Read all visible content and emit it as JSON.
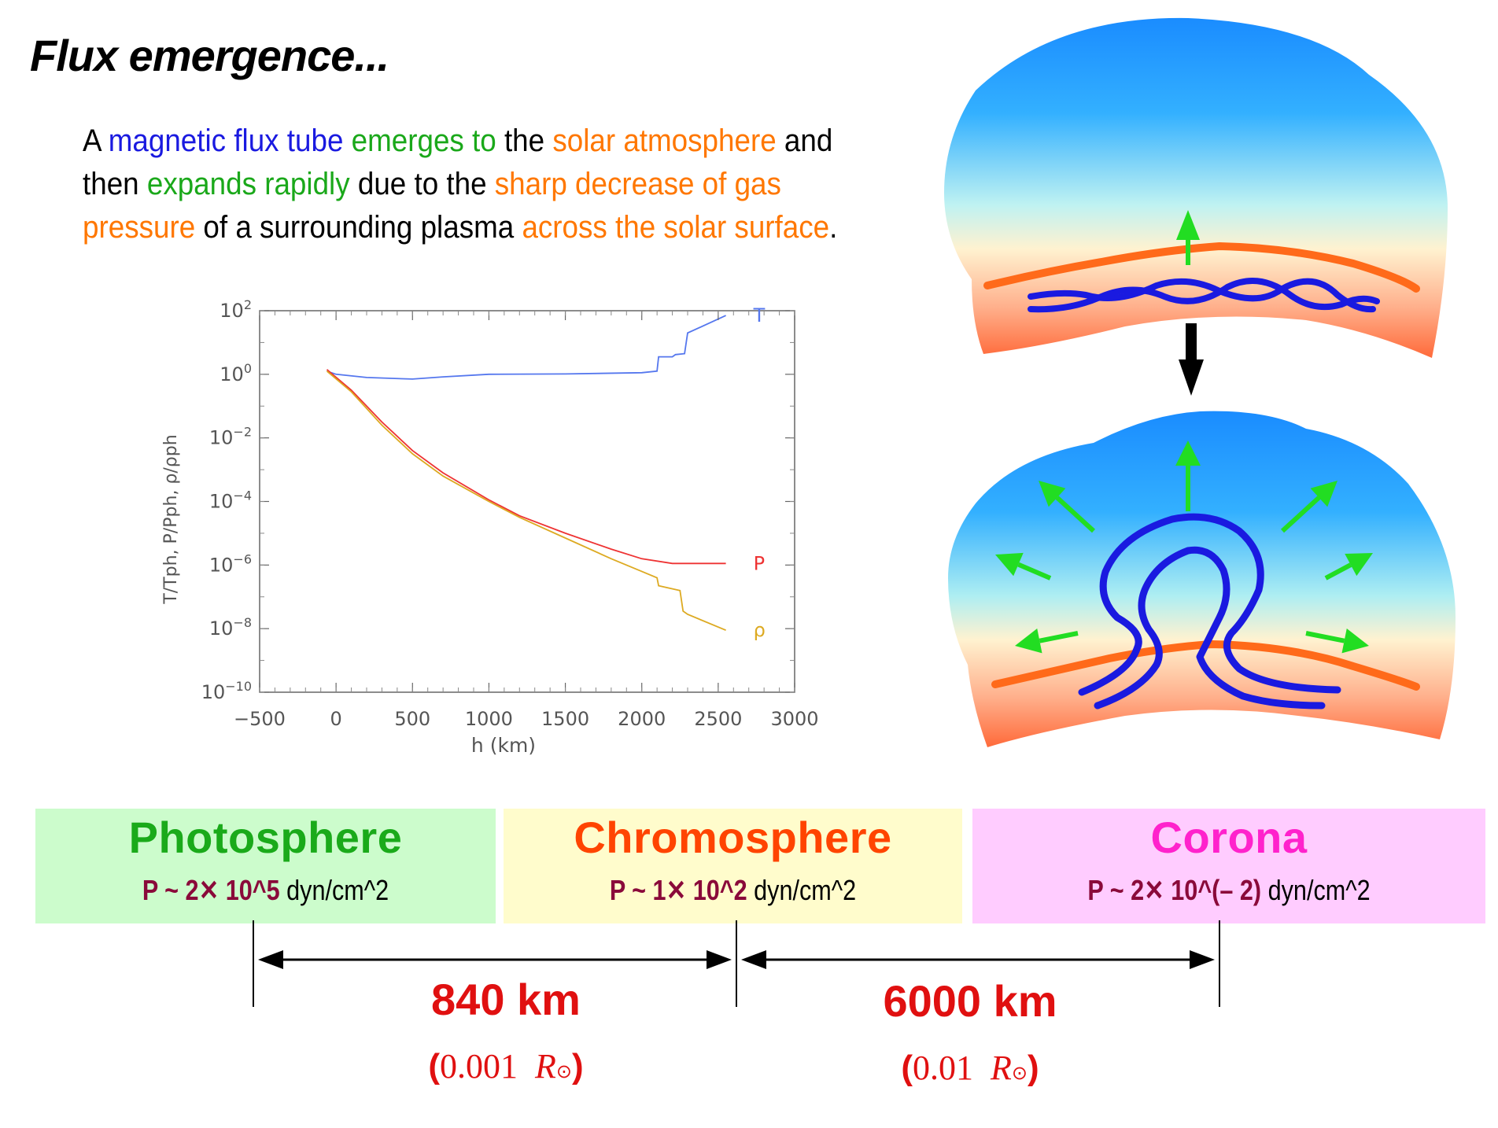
{
  "title": "Flux emergence...",
  "intro": [
    {
      "text": "A ",
      "color": "black"
    },
    {
      "text": "magnetic flux tube",
      "color": "blue"
    },
    {
      "text": " emerges to",
      "color": "green"
    },
    {
      "text": " the ",
      "color": "black"
    },
    {
      "text": "solar atmosphere",
      "color": "orange"
    },
    {
      "text": " and",
      "color": "black"
    },
    {
      "text": "\n",
      "color": "black"
    },
    {
      "text": "then ",
      "color": "black"
    },
    {
      "text": "expands rapidly",
      "color": "green"
    },
    {
      "text": " due to the ",
      "color": "black"
    },
    {
      "text": "sharp decrease of gas",
      "color": "orange"
    },
    {
      "text": "\n",
      "color": "black"
    },
    {
      "text": "pressure",
      "color": "orange"
    },
    {
      "text": " of a surrounding plasma ",
      "color": "black"
    },
    {
      "text": "across the solar surface",
      "color": "orange"
    },
    {
      "text": ".",
      "color": "black"
    }
  ],
  "chart_data": {
    "type": "line",
    "xlabel": "h (km)",
    "ylabel": "T/Tph, P/Pph, ρ/ρph",
    "xlim": [
      -500,
      3000
    ],
    "ylim": [
      -10,
      2
    ],
    "yscale": "log",
    "x_ticks": [
      "−500",
      "0",
      "500",
      "1000",
      "1500",
      "2000",
      "2500",
      "3000"
    ],
    "y_ticks": [
      {
        "base": "10",
        "exp": "2"
      },
      {
        "base": "10",
        "exp": "0"
      },
      {
        "base": "10",
        "exp": "−2"
      },
      {
        "base": "10",
        "exp": "−4"
      },
      {
        "base": "10",
        "exp": "−6"
      },
      {
        "base": "10",
        "exp": "−8"
      },
      {
        "base": "10",
        "exp": "−10"
      }
    ],
    "series": [
      {
        "name": "T",
        "color": "#5577ee",
        "x": [
          -60,
          0,
          200,
          500,
          700,
          1000,
          1500,
          2000,
          2100,
          2110,
          2200,
          2220,
          2280,
          2300,
          2550
        ],
        "y": [
          0.1,
          0.0,
          -0.1,
          -0.15,
          -0.08,
          0.0,
          0.01,
          0.05,
          0.1,
          0.55,
          0.55,
          0.62,
          0.65,
          1.3,
          1.85
        ]
      },
      {
        "name": "P",
        "color": "#ee3333",
        "x": [
          -60,
          100,
          300,
          500,
          700,
          1000,
          1200,
          1500,
          1800,
          2000,
          2200,
          2400,
          2550
        ],
        "y": [
          0.15,
          -0.5,
          -1.5,
          -2.4,
          -3.1,
          -3.95,
          -4.45,
          -5.0,
          -5.5,
          -5.8,
          -5.95,
          -5.95,
          -5.95
        ]
      },
      {
        "name": "ρ",
        "color": "#ddaa22",
        "x": [
          -60,
          100,
          300,
          500,
          700,
          1000,
          1200,
          1500,
          1800,
          2000,
          2100,
          2110,
          2250,
          2270,
          2300,
          2550
        ],
        "y": [
          0.1,
          -0.55,
          -1.6,
          -2.5,
          -3.2,
          -4.0,
          -4.5,
          -5.15,
          -5.8,
          -6.2,
          -6.4,
          -6.65,
          -6.8,
          -7.45,
          -7.55,
          -8.05
        ]
      }
    ]
  },
  "layers": [
    {
      "name": "Photosphere",
      "name_color": "#1aaa1a",
      "bg": "#ccfccc",
      "p_label": "P ~ 2",
      "p_times": "✕",
      "p_exp": " 10^5",
      "p_unit": " dyn/cm^2"
    },
    {
      "name": "Chromosphere",
      "name_color": "#ff4400",
      "bg": "#fffccc",
      "p_label": "P ~ 1",
      "p_times": "✕",
      "p_exp": " 10^2",
      "p_unit": " dyn/cm^2"
    },
    {
      "name": "Corona",
      "name_color": "#ff22cc",
      "bg": "#ffccff",
      "p_label": "P ~ 2",
      "p_times": "✕",
      "p_exp": " 10^(– 2)",
      "p_unit": " dyn/cm^2"
    }
  ],
  "distances": [
    {
      "label": "840 km",
      "open": "(",
      "value": "0.001",
      "r": "R",
      "sun": "⊙",
      "close": ")"
    },
    {
      "label": "6000 km",
      "open": "(",
      "value": "0.01",
      "r": "R",
      "sun": "⊙",
      "close": ")"
    }
  ],
  "colors": {
    "accent_red": "#e01010",
    "arrow_green": "#22dd22",
    "tube_blue": "#1a1ae0",
    "surface_orange": "#ff6a1a"
  }
}
